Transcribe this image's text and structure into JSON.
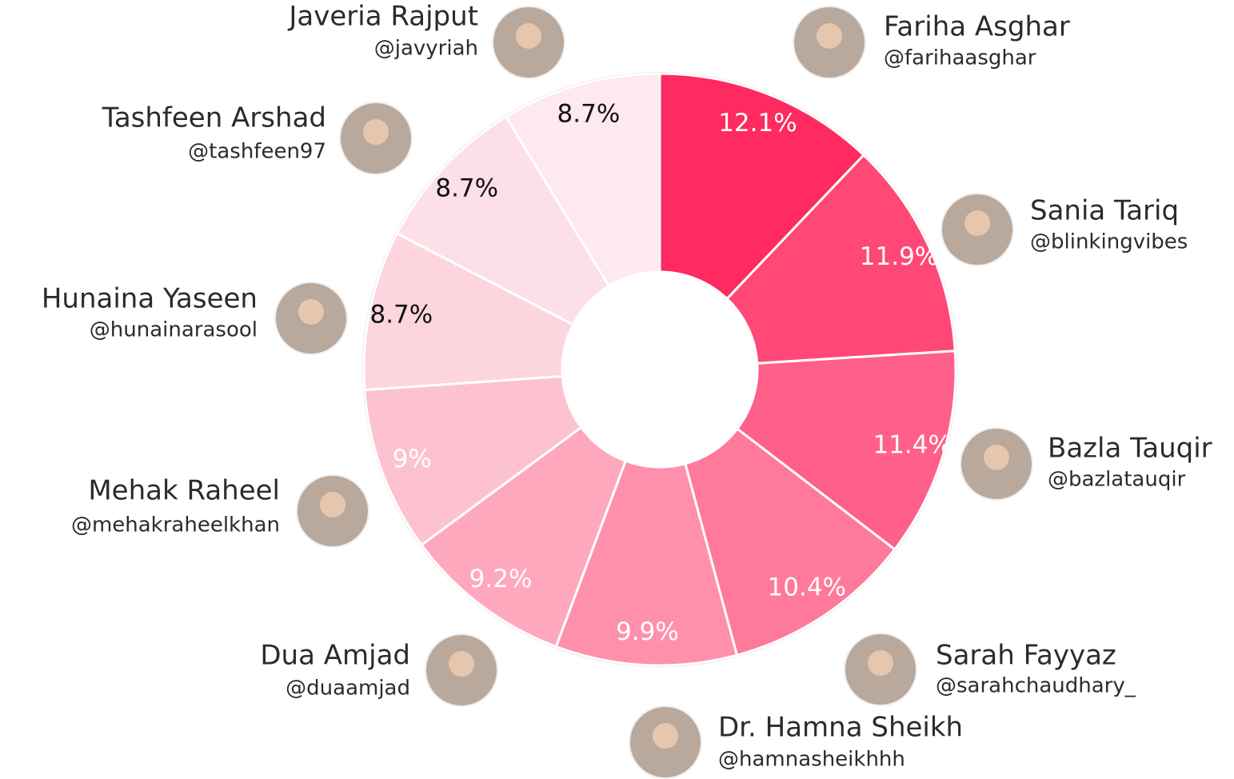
{
  "chart_data": {
    "type": "donut",
    "categories": [
      "Fariha Asghar",
      "Sania Tariq",
      "Bazla Tauqir",
      "Sarah Fayyaz",
      "Dr. Hamna Sheikh",
      "Dua Amjad",
      "Mehak Raheel",
      "Hunaina Yaseen",
      "Tashfeen Arshad",
      "Javeria Rajput"
    ],
    "handles": [
      "@farihaasghar",
      "@blinkingvibes",
      "@bazlatauqir",
      "@sarahchaudhary_",
      "@hamnasheikhhh",
      "@duaamjad",
      "@mehakraheelkhan",
      "@hunainarasool",
      "@tashfeen97",
      "@javyriah"
    ],
    "values": [
      12.1,
      11.9,
      11.4,
      10.4,
      9.9,
      9.2,
      9,
      8.7,
      8.7,
      8.7
    ],
    "value_labels": [
      "12.1%",
      "11.9%",
      "11.4%",
      "10.4%",
      "9.9%",
      "9.2%",
      "9%",
      "8.7%",
      "8.7%",
      "8.7%"
    ],
    "colors": [
      "#ff2a5f",
      "#ff4876",
      "#ff6089",
      "#ff7a9a",
      "#ff90ac",
      "#fea8bd",
      "#fdc2d0",
      "#fdd5de",
      "#fde0e7",
      "#fee9ef"
    ]
  }
}
